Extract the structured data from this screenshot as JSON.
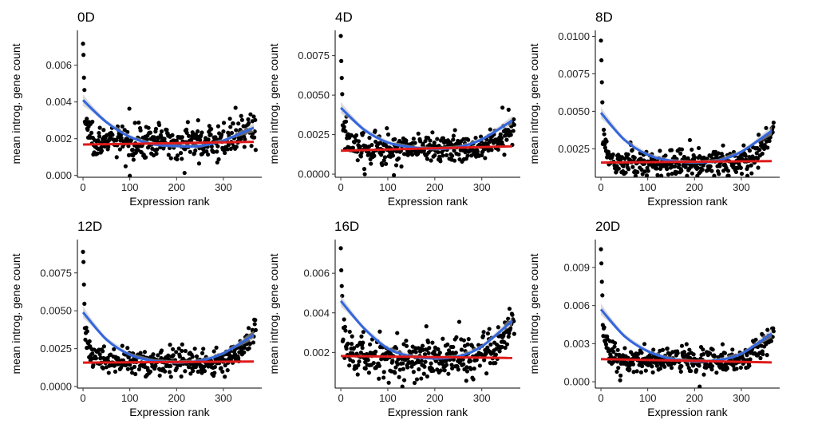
{
  "figure": {
    "common_xlabel": "Expression rank",
    "common_ylabel": "mean introg. gene count"
  },
  "colors": {
    "points": "#000000",
    "loess_fit": "#3366dd",
    "linear_fit": "#e01a1a",
    "confidence_band": "#bdbdbd"
  },
  "chart_data": [
    {
      "type": "scatter",
      "title": "0D",
      "xlabel": "Expression rank",
      "ylabel": "mean introg. gene count",
      "xlim": [
        -12,
        382
      ],
      "ylim": [
        -0.0001,
        0.0079
      ],
      "xticks": [
        0,
        100,
        200,
        300
      ],
      "xtick_labels": [
        "0",
        "100",
        "200",
        "300"
      ],
      "yticks": [
        0,
        0.002,
        0.004,
        0.006
      ],
      "ytick_labels": [
        "0.000",
        "0.002",
        "0.004",
        "0.006"
      ],
      "n_points": 370,
      "gen": {
        "peak": 0.0076,
        "decay": 0.0016,
        "k": 12,
        "base": 0.00185,
        "tail": 0.0008,
        "noise": 0.00045
      },
      "curve_fit": {
        "x": [
          0,
          50,
          100,
          150,
          200,
          250,
          300,
          365
        ],
        "y": [
          0.0041,
          0.0029,
          0.0021,
          0.0017,
          0.0016,
          0.0016,
          0.0019,
          0.0026
        ]
      },
      "linear_fit": {
        "x": [
          0,
          365
        ],
        "y": [
          0.00168,
          0.00183
        ]
      },
      "grid": false,
      "legend": "none"
    },
    {
      "type": "scatter",
      "title": "4D",
      "xlabel": "Expression rank",
      "ylabel": "mean introg. gene count",
      "xlim": [
        -12,
        382
      ],
      "ylim": [
        -0.0002,
        0.0091
      ],
      "xticks": [
        0,
        100,
        200,
        300
      ],
      "xtick_labels": [
        "0",
        "100",
        "200",
        "300"
      ],
      "yticks": [
        0,
        0.0025,
        0.005,
        0.0075
      ],
      "ytick_labels": [
        "0.0000",
        "0.0025",
        "0.0050",
        "0.0075"
      ],
      "n_points": 370,
      "gen": {
        "peak": 0.0088,
        "decay": 0.002,
        "k": 12,
        "base": 0.0016,
        "tail": 0.0018,
        "noise": 0.0005
      },
      "curve_fit": {
        "x": [
          0,
          50,
          100,
          150,
          200,
          250,
          300,
          365
        ],
        "y": [
          0.0042,
          0.0028,
          0.002,
          0.0017,
          0.0016,
          0.0017,
          0.0022,
          0.0034
        ]
      },
      "linear_fit": {
        "x": [
          0,
          365
        ],
        "y": [
          0.00148,
          0.00176
        ]
      },
      "grid": false,
      "legend": "none"
    },
    {
      "type": "scatter",
      "title": "8D",
      "xlabel": "Expression rank",
      "ylabel": "mean introg. gene count",
      "xlim": [
        -12,
        382
      ],
      "ylim": [
        0.0006,
        0.0104
      ],
      "xticks": [
        0,
        100,
        200,
        300
      ],
      "xtick_labels": [
        "0",
        "100",
        "200",
        "300"
      ],
      "yticks": [
        0.0025,
        0.005,
        0.0075,
        0.01
      ],
      "ytick_labels": [
        "0.0025",
        "0.0050",
        "0.0075",
        "0.0100"
      ],
      "n_points": 370,
      "gen": {
        "peak": 0.01,
        "decay": 0.0024,
        "k": 12,
        "base": 0.00155,
        "tail": 0.0022,
        "noise": 0.00045
      },
      "curve_fit": {
        "x": [
          0,
          50,
          100,
          150,
          200,
          250,
          300,
          365
        ],
        "y": [
          0.0049,
          0.0031,
          0.0021,
          0.0017,
          0.0016,
          0.0017,
          0.0023,
          0.0037
        ]
      },
      "linear_fit": {
        "x": [
          0,
          365
        ],
        "y": [
          0.00158,
          0.00168
        ]
      },
      "grid": false,
      "legend": "none"
    },
    {
      "type": "scatter",
      "title": "12D",
      "xlabel": "Expression rank",
      "ylabel": "mean introg. gene count",
      "xlim": [
        -12,
        382
      ],
      "ylim": [
        -0.0001,
        0.0097
      ],
      "xticks": [
        0,
        100,
        200,
        300
      ],
      "xtick_labels": [
        "0",
        "100",
        "200",
        "300"
      ],
      "yticks": [
        0,
        0.0025,
        0.005,
        0.0075
      ],
      "ytick_labels": [
        "0.0000",
        "0.0025",
        "0.0050",
        "0.0075"
      ],
      "n_points": 370,
      "gen": {
        "peak": 0.0094,
        "decay": 0.0026,
        "k": 12,
        "base": 0.0016,
        "tail": 0.0022,
        "noise": 0.0004
      },
      "curve_fit": {
        "x": [
          0,
          50,
          100,
          150,
          200,
          250,
          300,
          365
        ],
        "y": [
          0.0049,
          0.0031,
          0.0021,
          0.0017,
          0.0016,
          0.0017,
          0.0022,
          0.0034
        ]
      },
      "linear_fit": {
        "x": [
          0,
          365
        ],
        "y": [
          0.00158,
          0.00165
        ]
      },
      "grid": false,
      "legend": "none"
    },
    {
      "type": "scatter",
      "title": "16D",
      "xlabel": "Expression rank",
      "ylabel": "mean introg. gene count",
      "xlim": [
        -12,
        382
      ],
      "ylim": [
        0.0002,
        0.0077
      ],
      "xticks": [
        0,
        100,
        200,
        300
      ],
      "xtick_labels": [
        "0",
        "100",
        "200",
        "300"
      ],
      "yticks": [
        0.002,
        0.004,
        0.006
      ],
      "ytick_labels": [
        "0.002",
        "0.004",
        "0.006"
      ],
      "n_points": 370,
      "gen": {
        "peak": 0.0074,
        "decay": 0.0018,
        "k": 14,
        "base": 0.00175,
        "tail": 0.0018,
        "noise": 0.00055
      },
      "curve_fit": {
        "x": [
          0,
          50,
          100,
          150,
          200,
          250,
          300,
          365
        ],
        "y": [
          0.0046,
          0.0032,
          0.0022,
          0.0018,
          0.0017,
          0.0018,
          0.0023,
          0.0036
        ]
      },
      "linear_fit": {
        "x": [
          0,
          365
        ],
        "y": [
          0.00182,
          0.00172
        ]
      },
      "grid": false,
      "legend": "none"
    },
    {
      "type": "scatter",
      "title": "20D",
      "xlabel": "Expression rank",
      "ylabel": "mean introg. gene count",
      "xlim": [
        -12,
        382
      ],
      "ylim": [
        -0.0005,
        0.0112
      ],
      "xticks": [
        0,
        100,
        200,
        300
      ],
      "xtick_labels": [
        "0",
        "100",
        "200",
        "300"
      ],
      "yticks": [
        0,
        0.003,
        0.006,
        0.009
      ],
      "ytick_labels": [
        "0.000",
        "0.003",
        "0.006",
        "0.009"
      ],
      "n_points": 370,
      "gen": {
        "peak": 0.0108,
        "decay": 0.0032,
        "k": 12,
        "base": 0.0017,
        "tail": 0.0022,
        "noise": 0.0005
      },
      "curve_fit": {
        "x": [
          0,
          50,
          100,
          150,
          200,
          250,
          300,
          365
        ],
        "y": [
          0.0057,
          0.0036,
          0.0024,
          0.0018,
          0.0016,
          0.0017,
          0.0022,
          0.0038
        ]
      },
      "linear_fit": {
        "x": [
          0,
          365
        ],
        "y": [
          0.00178,
          0.00152
        ]
      },
      "grid": false,
      "legend": "none"
    }
  ]
}
